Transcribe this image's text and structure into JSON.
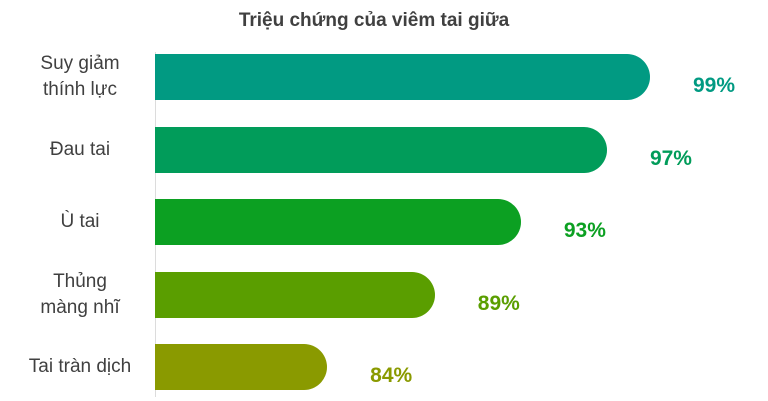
{
  "chart_data": {
    "type": "bar",
    "orientation": "horizontal",
    "title": "Triệu chứng của viêm tai giữa",
    "xlabel": "",
    "ylabel": "",
    "grid": false,
    "categories": [
      {
        "lines": [
          "Suy giảm",
          "thính lực"
        ]
      },
      {
        "lines": [
          "Đau tai"
        ]
      },
      {
        "lines": [
          "Ù tai"
        ]
      },
      {
        "lines": [
          "Thủng",
          "màng nhĩ"
        ]
      },
      {
        "lines": [
          "Tai tràn dịch"
        ]
      }
    ],
    "values": [
      99,
      97,
      93,
      89,
      84
    ],
    "value_labels": [
      "99%",
      "97%",
      "93%",
      "89%",
      "84%"
    ],
    "colors": [
      "#019a82",
      "#019c5a",
      "#0ca022",
      "#5a9e00",
      "#8a9a00"
    ],
    "xlim": [
      76,
      99
    ]
  }
}
